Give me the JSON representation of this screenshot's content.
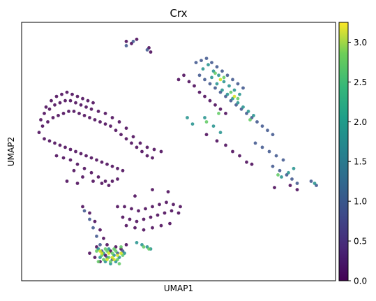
{
  "chart_data": {
    "type": "scatter",
    "title": "Crx",
    "xlabel": "UMAP1",
    "ylabel": "UMAP2",
    "grid": false,
    "x_ticks": [],
    "y_ticks": [],
    "colorbar": {
      "colormap": "viridis",
      "min": 0.0,
      "max": 3.25,
      "ticks": [
        "0.0",
        "0.5",
        "1.0",
        "1.5",
        "2.0",
        "2.5",
        "3.0"
      ],
      "tick_values": [
        0.0,
        0.5,
        1.0,
        1.5,
        2.0,
        2.5,
        3.0
      ]
    },
    "colors": {
      "low": "#440154",
      "mid": "#21918c",
      "high": "#fde725"
    },
    "series": [
      {
        "value": 0.05,
        "color": "#440154",
        "points": [
          [
            -2.9,
            1.9
          ],
          [
            -3.0,
            1.3
          ],
          [
            -2.7,
            2.2
          ],
          [
            -2.4,
            2.4
          ],
          [
            -2.1,
            2.6
          ],
          [
            -1.8,
            2.7
          ],
          [
            -1.5,
            2.8
          ],
          [
            -1.2,
            2.8
          ],
          [
            -0.9,
            2.7
          ],
          [
            -0.6,
            2.6
          ],
          [
            -0.3,
            2.5
          ],
          [
            0.0,
            2.4
          ],
          [
            0.4,
            2.3
          ],
          [
            0.8,
            2.2
          ],
          [
            1.2,
            2.0
          ],
          [
            1.6,
            1.8
          ],
          [
            2.0,
            1.5
          ],
          [
            2.4,
            1.1
          ],
          [
            2.8,
            0.8
          ],
          [
            3.2,
            0.6
          ],
          [
            3.6,
            0.5
          ],
          [
            4.0,
            0.4
          ],
          [
            -2.8,
            1.6
          ],
          [
            -2.5,
            1.8
          ],
          [
            -2.2,
            2.0
          ],
          [
            -1.9,
            2.1
          ],
          [
            -1.6,
            2.2
          ],
          [
            -1.3,
            2.3
          ],
          [
            -1.0,
            2.3
          ],
          [
            -0.7,
            2.2
          ],
          [
            -0.4,
            2.1
          ],
          [
            -0.1,
            2.0
          ],
          [
            0.2,
            1.9
          ],
          [
            0.5,
            1.8
          ],
          [
            0.8,
            1.7
          ],
          [
            1.1,
            1.6
          ],
          [
            1.4,
            1.4
          ],
          [
            1.7,
            1.2
          ],
          [
            2.0,
            1.0
          ],
          [
            2.3,
            0.8
          ],
          [
            2.6,
            0.6
          ],
          [
            2.9,
            0.4
          ],
          [
            3.2,
            0.2
          ],
          [
            3.5,
            0.1
          ],
          [
            -2.7,
            1.0
          ],
          [
            -2.4,
            0.9
          ],
          [
            -2.1,
            0.8
          ],
          [
            -1.8,
            0.7
          ],
          [
            -1.5,
            0.6
          ],
          [
            -1.2,
            0.5
          ],
          [
            -0.9,
            0.4
          ],
          [
            -0.6,
            0.3
          ],
          [
            -0.3,
            0.2
          ],
          [
            0.0,
            0.1
          ],
          [
            0.3,
            0.0
          ],
          [
            0.6,
            -0.1
          ],
          [
            0.9,
            -0.2
          ],
          [
            1.2,
            -0.3
          ],
          [
            1.5,
            -0.4
          ],
          [
            1.8,
            -0.5
          ],
          [
            -2.0,
            0.2
          ],
          [
            -1.6,
            0.1
          ],
          [
            -1.2,
            0.0
          ],
          [
            -0.8,
            -0.2
          ],
          [
            -0.4,
            -0.4
          ],
          [
            0.0,
            -0.6
          ],
          [
            0.4,
            -0.8
          ],
          [
            0.8,
            -1.0
          ],
          [
            1.2,
            -1.0
          ],
          [
            1.5,
            -0.9
          ],
          [
            -1.0,
            -0.5
          ],
          [
            -0.5,
            -0.8
          ],
          [
            0.1,
            -1.0
          ],
          [
            0.6,
            -1.1
          ],
          [
            1.0,
            -1.2
          ],
          [
            -2.6,
            2.5
          ],
          [
            -2.3,
            2.8
          ],
          [
            -2.0,
            3.0
          ],
          [
            -1.7,
            3.1
          ],
          [
            -1.4,
            3.2
          ],
          [
            -1.1,
            3.1
          ],
          [
            -0.8,
            3.0
          ],
          [
            -0.5,
            2.9
          ],
          [
            -0.2,
            2.8
          ],
          [
            0.1,
            2.7
          ],
          [
            1.5,
            -2.2
          ],
          [
            1.9,
            -2.2
          ],
          [
            2.3,
            -2.3
          ],
          [
            2.7,
            -2.4
          ],
          [
            3.1,
            -2.3
          ],
          [
            3.5,
            -2.2
          ],
          [
            3.9,
            -2.1
          ],
          [
            4.3,
            -2.0
          ],
          [
            4.7,
            -2.1
          ],
          [
            5.1,
            -2.2
          ],
          [
            1.8,
            -2.7
          ],
          [
            2.2,
            -2.8
          ],
          [
            2.6,
            -2.9
          ],
          [
            3.0,
            -2.8
          ],
          [
            3.4,
            -2.7
          ],
          [
            3.8,
            -2.6
          ],
          [
            4.2,
            -2.5
          ],
          [
            4.6,
            -2.4
          ],
          [
            5.0,
            -2.5
          ],
          [
            2.0,
            -3.1
          ],
          [
            2.5,
            -3.2
          ],
          [
            3.0,
            -3.3
          ],
          [
            3.5,
            -3.2
          ],
          [
            4.0,
            -3.1
          ],
          [
            4.5,
            -3.0
          ],
          [
            3.5,
            -1.4
          ],
          [
            4.4,
            -1.5
          ],
          [
            2.5,
            -1.7
          ],
          [
            -1.4,
            -1.0
          ],
          [
            -0.8,
            -1.1
          ],
          [
            -0.5,
            -2.2
          ],
          [
            -0.1,
            -2.5
          ],
          [
            0.2,
            -2.9
          ],
          [
            0.5,
            -3.3
          ],
          [
            0.7,
            -3.7
          ],
          [
            -0.1,
            -4.4
          ],
          [
            0.2,
            -4.6
          ],
          [
            0.5,
            -4.8
          ],
          [
            0.8,
            -4.5
          ],
          [
            1.1,
            -4.3
          ],
          [
            1.4,
            -4.1
          ],
          [
            1.7,
            -4.2
          ],
          [
            2.0,
            -4.0
          ],
          [
            0.3,
            -4.1
          ],
          [
            0.9,
            -4.0
          ],
          [
            2.0,
            5.6
          ],
          [
            2.3,
            5.5
          ],
          [
            2.6,
            5.7
          ],
          [
            3.3,
            5.3
          ],
          [
            3.4,
            5.1
          ],
          [
            5.0,
            3.8
          ],
          [
            5.3,
            4.0
          ],
          [
            5.6,
            3.7
          ],
          [
            5.9,
            3.5
          ],
          [
            6.2,
            3.2
          ],
          [
            6.5,
            3.0
          ],
          [
            6.8,
            2.8
          ],
          [
            7.1,
            2.6
          ],
          [
            7.4,
            2.4
          ],
          [
            7.7,
            2.2
          ],
          [
            6.6,
            1.2
          ],
          [
            7.2,
            0.9
          ],
          [
            7.7,
            0.7
          ],
          [
            8.1,
            0.4
          ],
          [
            8.5,
            0.2
          ],
          [
            8.9,
            -0.1
          ],
          [
            9.2,
            -0.2
          ],
          [
            10.5,
            -1.3
          ],
          [
            11.4,
            -1.2
          ],
          [
            11.8,
            -1.4
          ]
        ]
      },
      {
        "value": 0.8,
        "color": "#3b528b",
        "points": [
          [
            6.0,
            4.6
          ],
          [
            6.3,
            4.7
          ],
          [
            6.6,
            4.8
          ],
          [
            6.9,
            4.6
          ],
          [
            7.2,
            4.4
          ],
          [
            7.5,
            4.2
          ],
          [
            7.8,
            4.0
          ],
          [
            8.1,
            3.8
          ],
          [
            8.4,
            3.6
          ],
          [
            8.7,
            3.4
          ],
          [
            6.2,
            4.0
          ],
          [
            6.5,
            3.8
          ],
          [
            6.8,
            3.6
          ],
          [
            7.1,
            3.4
          ],
          [
            7.4,
            3.2
          ],
          [
            7.7,
            3.0
          ],
          [
            8.0,
            2.8
          ],
          [
            8.3,
            2.6
          ],
          [
            8.6,
            2.4
          ],
          [
            8.9,
            2.2
          ],
          [
            9.2,
            2.0
          ],
          [
            9.5,
            1.8
          ],
          [
            9.8,
            1.6
          ],
          [
            10.1,
            1.4
          ],
          [
            10.4,
            1.2
          ],
          [
            9.4,
            0.8
          ],
          [
            9.8,
            0.6
          ],
          [
            10.2,
            0.4
          ],
          [
            10.6,
            0.2
          ],
          [
            11.0,
            0.0
          ],
          [
            10.4,
            -0.3
          ],
          [
            10.8,
            -0.5
          ],
          [
            11.2,
            -0.7
          ],
          [
            11.5,
            -0.9
          ],
          [
            11.8,
            -1.1
          ],
          [
            -0.4,
            -2.4
          ],
          [
            -0.1,
            -2.8
          ],
          [
            0.1,
            -3.2
          ],
          [
            0.3,
            -3.6
          ],
          [
            0.5,
            -4.0
          ],
          [
            0.6,
            -4.3
          ],
          [
            0.9,
            -4.6
          ],
          [
            1.2,
            -4.7
          ],
          [
            1.5,
            -4.4
          ],
          [
            1.8,
            -4.3
          ],
          [
            2.0,
            5.4
          ],
          [
            2.4,
            5.6
          ],
          [
            3.2,
            5.2
          ],
          [
            12.6,
            -1.0
          ],
          [
            12.9,
            -1.2
          ]
        ]
      },
      {
        "value": 1.5,
        "color": "#21918c",
        "points": [
          [
            6.4,
            4.3
          ],
          [
            6.7,
            4.5
          ],
          [
            7.0,
            4.2
          ],
          [
            7.3,
            4.0
          ],
          [
            7.6,
            3.7
          ],
          [
            7.9,
            3.5
          ],
          [
            8.2,
            3.3
          ],
          [
            8.5,
            3.1
          ],
          [
            6.9,
            3.9
          ],
          [
            7.2,
            3.6
          ],
          [
            7.5,
            3.3
          ],
          [
            7.8,
            3.1
          ],
          [
            8.1,
            2.9
          ],
          [
            8.4,
            2.7
          ],
          [
            8.7,
            2.5
          ],
          [
            9.0,
            2.3
          ],
          [
            9.3,
            2.1
          ],
          [
            6.5,
            2.0
          ],
          [
            7.0,
            1.6
          ],
          [
            7.4,
            1.3
          ],
          [
            0.4,
            -4.2
          ],
          [
            0.7,
            -4.4
          ],
          [
            1.0,
            -4.2
          ],
          [
            1.3,
            -4.5
          ],
          [
            1.6,
            -4.6
          ],
          [
            1.9,
            -4.4
          ],
          [
            0.5,
            -4.6
          ],
          [
            0.8,
            -4.8
          ],
          [
            1.1,
            -4.9
          ],
          [
            1.4,
            -4.8
          ],
          [
            2.6,
            -3.9
          ],
          [
            2.9,
            -4.0
          ],
          [
            3.2,
            -4.1
          ],
          [
            3.4,
            -4.2
          ],
          [
            10.9,
            -0.8
          ],
          [
            11.3,
            -0.6
          ],
          [
            11.6,
            -0.4
          ],
          [
            12.8,
            -1.1
          ],
          [
            5.5,
            2.0
          ],
          [
            5.8,
            1.7
          ]
        ]
      },
      {
        "value": 2.3,
        "color": "#5ec962",
        "points": [
          [
            0.3,
            -4.3
          ],
          [
            0.6,
            -4.5
          ],
          [
            0.9,
            -4.3
          ],
          [
            1.2,
            -4.4
          ],
          [
            1.5,
            -4.7
          ],
          [
            1.8,
            -4.5
          ],
          [
            0.7,
            -4.7
          ],
          [
            1.0,
            -4.6
          ],
          [
            1.3,
            -4.2
          ],
          [
            1.7,
            -4.1
          ],
          [
            0.4,
            -4.8
          ],
          [
            0.8,
            -4.2
          ],
          [
            1.1,
            -4.8
          ],
          [
            1.4,
            -4.3
          ],
          [
            1.6,
            -4.9
          ],
          [
            3.0,
            -4.1
          ],
          [
            3.3,
            -4.2
          ],
          [
            7.1,
            4.1
          ],
          [
            7.6,
            3.9
          ],
          [
            8.0,
            3.2
          ],
          [
            8.4,
            2.9
          ],
          [
            6.6,
            1.8
          ],
          [
            7.3,
            2.2
          ],
          [
            9.1,
            1.9
          ],
          [
            10.7,
            -0.7
          ]
        ]
      },
      {
        "value": 3.0,
        "color": "#d2e21b",
        "points": [
          [
            0.6,
            -4.4
          ],
          [
            0.9,
            -4.7
          ],
          [
            1.2,
            -4.6
          ],
          [
            1.5,
            -4.5
          ],
          [
            0.5,
            -4.3
          ],
          [
            1.0,
            -4.4
          ],
          [
            1.3,
            -4.7
          ],
          [
            1.7,
            -4.4
          ],
          [
            7.4,
            3.8
          ],
          [
            8.2,
            3.0
          ]
        ]
      }
    ]
  }
}
